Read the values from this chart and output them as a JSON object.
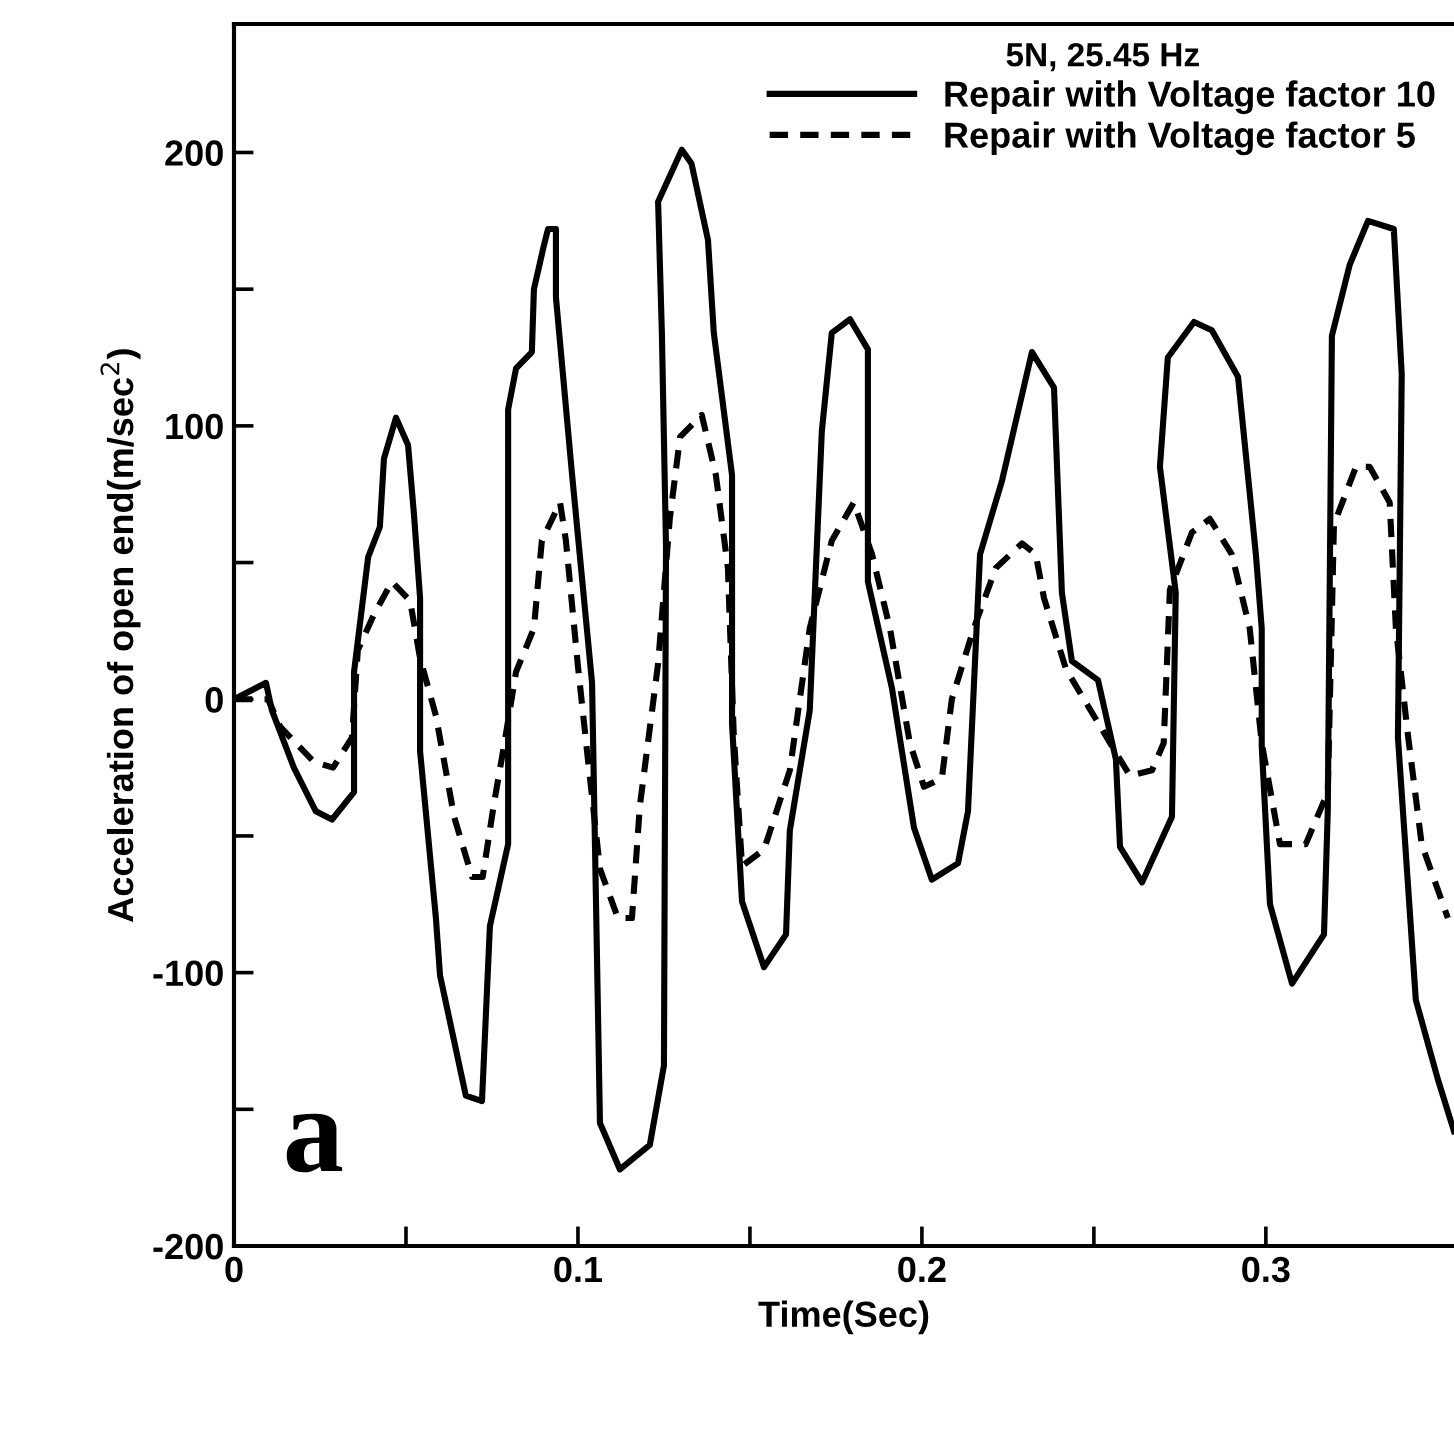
{
  "chart_data": {
    "type": "line",
    "xlabel": "Time(Sec)",
    "ylabel": "Acceleration of open end(m/sec$^{2}$)",
    "legend_title": "5N, 25.45 Hz",
    "legend": "top right",
    "grid": false,
    "marker": "none",
    "xlim": [
      0,
      0.3547
    ],
    "ylim": [
      -200,
      247
    ],
    "xticks": [
      0,
      {
        "value": 0.05,
        "label": null
      },
      0.1,
      {
        "value": 0.15,
        "label": null
      },
      0.2,
      {
        "value": 0.25,
        "label": null
      },
      0.3
    ],
    "yticks": [
      -200,
      {
        "value": -150,
        "label": null
      },
      -100,
      {
        "value": -50,
        "label": null
      },
      0,
      {
        "value": 50,
        "label": null
      },
      100,
      {
        "value": 150,
        "label": null
      },
      200
    ],
    "annotations": [
      "a"
    ],
    "series": [
      {
        "name": "Repair with Voltage factor 10",
        "color": "#000000",
        "line_style": "solid",
        "x": [
          0,
          0.0093,
          0.011,
          0.0174,
          0.0238,
          0.0285,
          0.0349,
          0.0349,
          0.039,
          0.0424,
          0.0436,
          0.0471,
          0.0506,
          0.0523,
          0.0541,
          0.0541,
          0.0587,
          0.0599,
          0.0674,
          0.0721,
          0.0744,
          0.0797,
          0.0797,
          0.082,
          0.0866,
          0.0872,
          0.0901,
          0.0913,
          0.0936,
          0.0936,
          0.0983,
          0.1041,
          0.1064,
          0.1122,
          0.1209,
          0.125,
          0.1256,
          0.1244,
          0.1233,
          0.1302,
          0.133,
          0.1378,
          0.1395,
          0.1448,
          0.1448,
          0.1477,
          0.1541,
          0.1605,
          0.1616,
          0.1674,
          0.1709,
          0.1738,
          0.1791,
          0.1843,
          0.1843,
          0.1913,
          0.1977,
          0.2029,
          0.2105,
          0.2134,
          0.2169,
          0.2233,
          0.232,
          0.2384,
          0.2407,
          0.2436,
          0.2512,
          0.2564,
          0.2576,
          0.264,
          0.2727,
          0.2738,
          0.2692,
          0.2715,
          0.2791,
          0.2843,
          0.2919,
          0.2971,
          0.2988,
          0.2988,
          0.3012,
          0.3076,
          0.3169,
          0.318,
          0.3192,
          0.3244,
          0.3297,
          0.3372,
          0.3395,
          0.3384,
          0.3436,
          0.35,
          0.3547
        ],
        "values": [
          0,
          6,
          -4,
          -25,
          -41,
          -44,
          -34,
          10,
          52,
          63,
          88,
          103,
          93,
          68,
          37,
          -19,
          -80,
          -101,
          -145,
          -147,
          -83,
          -53,
          106,
          121,
          127,
          150,
          166,
          172,
          172,
          147,
          82,
          6,
          -155,
          -172,
          -163,
          -134,
          56,
          134,
          182,
          201,
          196,
          168,
          134,
          82,
          -9,
          -74,
          -98,
          -86,
          -48,
          -4,
          98,
          134,
          139,
          128,
          43,
          4,
          -47,
          -66,
          -60,
          -41,
          53,
          80,
          127,
          114,
          39,
          14,
          7,
          -22,
          -54,
          -67,
          -43,
          39,
          85,
          125,
          138,
          135,
          118,
          53,
          26,
          -17,
          -75,
          -104,
          -86,
          -41,
          133,
          159,
          175,
          172,
          119,
          -14,
          -110,
          -139,
          -158
        ]
      },
      {
        "name": "Repair with Voltage factor 5",
        "color": "#000000",
        "line_style": "dashed",
        "x": [
          0,
          0.0099,
          0.0134,
          0.0233,
          0.0288,
          0.0343,
          0.036,
          0.0407,
          0.0459,
          0.0512,
          0.0541,
          0.0587,
          0.064,
          0.0692,
          0.0723,
          0.0756,
          0.0785,
          0.082,
          0.0872,
          0.0895,
          0.0948,
          0.0965,
          0.1,
          0.1029,
          0.1064,
          0.1116,
          0.1157,
          0.118,
          0.1233,
          0.1267,
          0.1297,
          0.136,
          0.1401,
          0.1436,
          0.1453,
          0.1477,
          0.1541,
          0.1616,
          0.1674,
          0.1738,
          0.1802,
          0.1855,
          0.1907,
          0.1965,
          0.2006,
          0.2058,
          0.2087,
          0.2151,
          0.2215,
          0.2291,
          0.2331,
          0.2355,
          0.2419,
          0.2547,
          0.2605,
          0.2669,
          0.2703,
          0.2721,
          0.2785,
          0.2837,
          0.2901,
          0.2953,
          0.2988,
          0.3041,
          0.3116,
          0.318,
          0.3198,
          0.3262,
          0.3302,
          0.336,
          0.3378,
          0.3413,
          0.3453,
          0.3529
        ],
        "values": [
          0,
          0,
          -10,
          -23,
          -25,
          -14,
          18,
          31,
          43,
          36,
          15,
          -6,
          -43,
          -65,
          -65,
          -38,
          -17,
          10,
          26,
          58,
          72,
          58,
          12,
          -22,
          -62,
          -80,
          -80,
          -39,
          13,
          66,
          96,
          104,
          82,
          48,
          -13,
          -61,
          -55,
          -26,
          26,
          58,
          72,
          53,
          26,
          -16,
          -32,
          -29,
          0,
          26,
          48,
          57,
          53,
          37,
          11,
          -16,
          -28,
          -26,
          -16,
          40,
          61,
          66,
          53,
          26,
          -16,
          -53,
          -53,
          -34,
          64,
          85,
          85,
          72,
          26,
          -13,
          -53,
          -80
        ]
      }
    ]
  }
}
